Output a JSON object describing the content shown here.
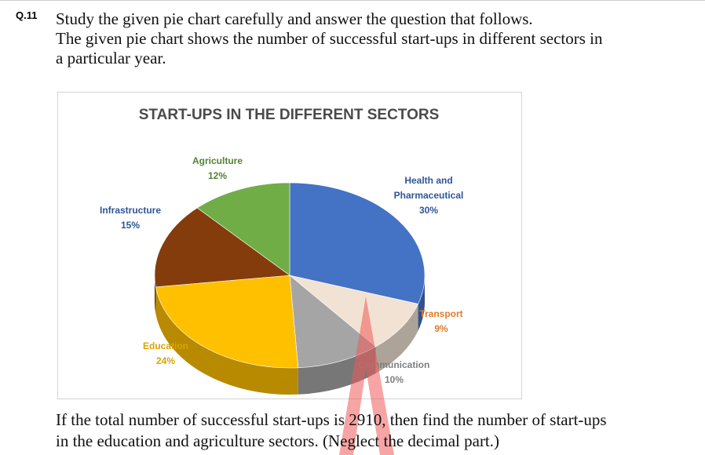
{
  "question": {
    "number": "Q.11",
    "intro_lines": [
      "Study the given pie chart carefully and answer the question that follows.",
      "The given pie chart shows the number of successful start-ups in different sectors in",
      "a particular year."
    ],
    "ask_lines": [
      "If the total number of successful start-ups is 2910, then find the number of start-ups",
      "in the education and agriculture sectors. (Neglect the decimal part.)"
    ]
  },
  "chart_data": {
    "type": "pie",
    "title": "START-UPS IN THE DIFFERENT SECTORS",
    "style": "3d",
    "slices": [
      {
        "name": "Health and Pharmaceutical",
        "label_lines": [
          "Health and",
          "Pharmaceutical"
        ],
        "percent_text": "30%",
        "value": 30,
        "color": "#4472c4",
        "label_color": "#2f5597"
      },
      {
        "name": "Transport",
        "label_lines": [
          "Transport"
        ],
        "percent_text": "9%",
        "value": 9,
        "color": "#f2e2d3",
        "label_color": "#e07b2a"
      },
      {
        "name": "Communication",
        "label_lines": [
          "Communication"
        ],
        "percent_text": "10%",
        "value": 10,
        "color": "#a5a5a5",
        "label_color": "#7f7f7f"
      },
      {
        "name": "Education",
        "label_lines": [
          "Education"
        ],
        "percent_text": "24%",
        "value": 24,
        "color": "#ffc000",
        "label_color": "#d9a300"
      },
      {
        "name": "Infrastructure",
        "label_lines": [
          "Infrastructure"
        ],
        "percent_text": "15%",
        "value": 15,
        "color": "#843c0c",
        "label_color": "#2f5597"
      },
      {
        "name": "Agriculture",
        "label_lines": [
          "Agriculture"
        ],
        "percent_text": "12%",
        "value": 12,
        "color": "#70ad47",
        "label_color": "#548235"
      }
    ]
  }
}
